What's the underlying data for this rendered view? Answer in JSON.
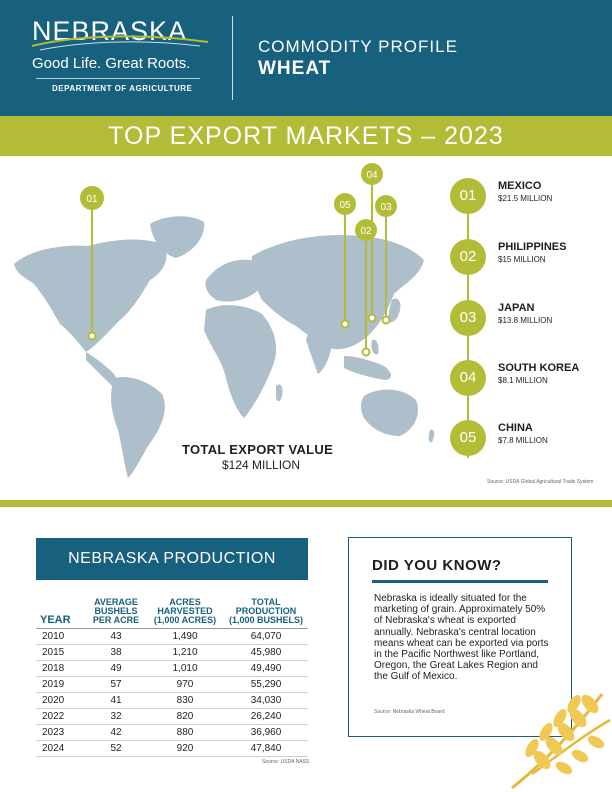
{
  "header": {
    "logo_word": "NEBRASKA",
    "logo_tagline": "Good Life. Great Roots.",
    "department": "DEPARTMENT OF AGRICULTURE",
    "profile_label": "COMMODITY PROFILE",
    "commodity": "WHEAT"
  },
  "banner": {
    "title": "TOP EXPORT MARKETS – 2023"
  },
  "map": {
    "pins": [
      {
        "number": "01",
        "icon": "pin-mexico"
      },
      {
        "number": "02",
        "icon": "pin-philippines"
      },
      {
        "number": "03",
        "icon": "pin-japan"
      },
      {
        "number": "04",
        "icon": "pin-south-korea"
      },
      {
        "number": "05",
        "icon": "pin-china"
      }
    ]
  },
  "markets": [
    {
      "number": "01",
      "name": "MEXICO",
      "value": "$21.5 MILLION"
    },
    {
      "number": "02",
      "name": "PHILIPPINES",
      "value": "$15 MILLION"
    },
    {
      "number": "03",
      "name": "JAPAN",
      "value": "$13.8 MILLION"
    },
    {
      "number": "04",
      "name": "SOUTH KOREA",
      "value": "$8.1 MILLION"
    },
    {
      "number": "05",
      "name": "CHINA",
      "value": "$7.8 MILLION"
    }
  ],
  "total": {
    "label": "TOTAL EXPORT VALUE",
    "value": "$124 MILLION"
  },
  "source_exports": "Source: USDA Global Agricultural Trade System",
  "production": {
    "title": "NEBRASKA PRODUCTION",
    "columns": {
      "year": "YEAR",
      "bushels": [
        "AVERAGE",
        "BUSHELS",
        "PER ACRE"
      ],
      "acres": [
        "ACRES",
        "HARVESTED",
        "(1,000 ACRES)"
      ],
      "total": [
        "TOTAL",
        "PRODUCTION",
        "(1,000 BUSHELS)"
      ]
    },
    "rows": [
      [
        "2010",
        "43",
        "1,490",
        "64,070"
      ],
      [
        "2015",
        "38",
        "1,210",
        "45,980"
      ],
      [
        "2018",
        "49",
        "1,010",
        "49,490"
      ],
      [
        "2019",
        "57",
        "970",
        "55,290"
      ],
      [
        "2020",
        "41",
        "830",
        "34,030"
      ],
      [
        "2022",
        "32",
        "820",
        "26,240"
      ],
      [
        "2023",
        "42",
        "880",
        "36,960"
      ],
      [
        "2024",
        "52",
        "920",
        "47,840"
      ]
    ],
    "source": "Source: USDA NASS"
  },
  "did_you_know": {
    "title": "DID YOU KNOW?",
    "text": "Nebraska is ideally situated for the marketing of grain. Approximately 50% of Nebraska's wheat is exported annually. Nebraska's central location means wheat can be exported via ports in the Pacific Northwest like Portland, Oregon, the Great Lakes Region and the Gulf of Mexico.",
    "source": "Source: Nebraska Wheat Board"
  },
  "colors": {
    "navy": "#17607e",
    "olive": "#b2bc36",
    "map": "#aebfcc"
  }
}
